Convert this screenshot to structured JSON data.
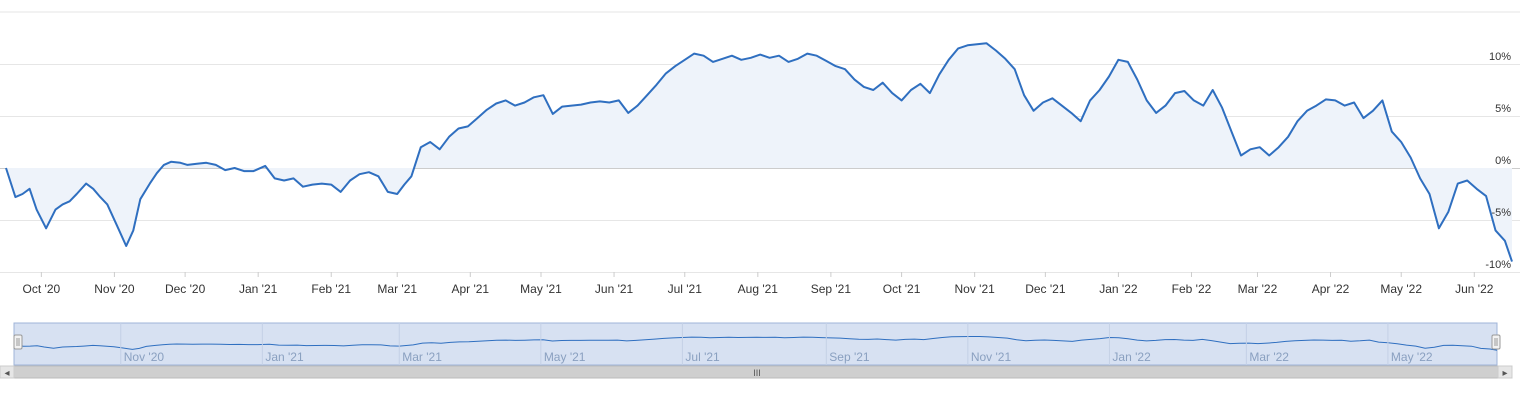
{
  "chart_data": {
    "type": "area",
    "title": "",
    "xlabel": "",
    "ylabel": "",
    "ylim": [
      -10,
      15
    ],
    "yticks": [
      {
        "value": 10,
        "label": "10%"
      },
      {
        "value": 5,
        "label": "5%"
      },
      {
        "value": 0,
        "label": "0%"
      },
      {
        "value": -5,
        "label": "-5%"
      },
      {
        "value": -10,
        "label": "-10%"
      }
    ],
    "xlim": [
      "2020-09-16",
      "2022-06-17"
    ],
    "xticks": [
      {
        "date": "2020-10-01",
        "label": "Oct '20"
      },
      {
        "date": "2020-11-01",
        "label": "Nov '20"
      },
      {
        "date": "2020-12-01",
        "label": "Dec '20"
      },
      {
        "date": "2021-01-01",
        "label": "Jan '21"
      },
      {
        "date": "2021-02-01",
        "label": "Feb '21"
      },
      {
        "date": "2021-03-01",
        "label": "Mar '21"
      },
      {
        "date": "2021-04-01",
        "label": "Apr '21"
      },
      {
        "date": "2021-05-01",
        "label": "May '21"
      },
      {
        "date": "2021-06-01",
        "label": "Jun '21"
      },
      {
        "date": "2021-07-01",
        "label": "Jul '21"
      },
      {
        "date": "2021-08-01",
        "label": "Aug '21"
      },
      {
        "date": "2021-09-01",
        "label": "Sep '21"
      },
      {
        "date": "2021-10-01",
        "label": "Oct '21"
      },
      {
        "date": "2021-11-01",
        "label": "Nov '21"
      },
      {
        "date": "2021-12-01",
        "label": "Dec '21"
      },
      {
        "date": "2022-01-01",
        "label": "Jan '22"
      },
      {
        "date": "2022-02-01",
        "label": "Feb '22"
      },
      {
        "date": "2022-03-01",
        "label": "Mar '22"
      },
      {
        "date": "2022-04-01",
        "label": "Apr '22"
      },
      {
        "date": "2022-05-01",
        "label": "May '22"
      },
      {
        "date": "2022-06-01",
        "label": "Jun '22"
      }
    ],
    "grid": true,
    "legend": "none",
    "series": [
      {
        "x": [
          "2020-09-16",
          "2020-09-20",
          "2020-09-23",
          "2020-09-26",
          "2020-09-29",
          "2020-10-03",
          "2020-10-07",
          "2020-10-10",
          "2020-10-13",
          "2020-10-16",
          "2020-10-20",
          "2020-10-23",
          "2020-10-26",
          "2020-10-29",
          "2020-11-02",
          "2020-11-06",
          "2020-11-09",
          "2020-11-12",
          "2020-11-16",
          "2020-11-19",
          "2020-11-22",
          "2020-11-25",
          "2020-11-29",
          "2020-12-02",
          "2020-12-06",
          "2020-12-10",
          "2020-12-14",
          "2020-12-18",
          "2020-12-22",
          "2020-12-26",
          "2020-12-30",
          "2021-01-04",
          "2021-01-08",
          "2021-01-12",
          "2021-01-16",
          "2021-01-20",
          "2021-01-24",
          "2021-01-28",
          "2021-02-01",
          "2021-02-05",
          "2021-02-09",
          "2021-02-13",
          "2021-02-17",
          "2021-02-21",
          "2021-02-25",
          "2021-03-01",
          "2021-03-04",
          "2021-03-07",
          "2021-03-11",
          "2021-03-15",
          "2021-03-19",
          "2021-03-23",
          "2021-03-27",
          "2021-03-31",
          "2021-04-04",
          "2021-04-08",
          "2021-04-12",
          "2021-04-16",
          "2021-04-20",
          "2021-04-24",
          "2021-04-28",
          "2021-05-02",
          "2021-05-06",
          "2021-05-10",
          "2021-05-14",
          "2021-05-18",
          "2021-05-22",
          "2021-05-26",
          "2021-05-30",
          "2021-06-03",
          "2021-06-07",
          "2021-06-11",
          "2021-06-15",
          "2021-06-19",
          "2021-06-23",
          "2021-06-27",
          "2021-07-01",
          "2021-07-05",
          "2021-07-09",
          "2021-07-13",
          "2021-07-17",
          "2021-07-21",
          "2021-07-25",
          "2021-07-29",
          "2021-08-02",
          "2021-08-06",
          "2021-08-10",
          "2021-08-14",
          "2021-08-18",
          "2021-08-22",
          "2021-08-26",
          "2021-08-30",
          "2021-09-03",
          "2021-09-07",
          "2021-09-11",
          "2021-09-15",
          "2021-09-19",
          "2021-09-23",
          "2021-09-27",
          "2021-10-01",
          "2021-10-05",
          "2021-10-09",
          "2021-10-13",
          "2021-10-17",
          "2021-10-21",
          "2021-10-25",
          "2021-10-29",
          "2021-11-02",
          "2021-11-06",
          "2021-11-10",
          "2021-11-14",
          "2021-11-18",
          "2021-11-22",
          "2021-11-26",
          "2021-11-30",
          "2021-12-04",
          "2021-12-08",
          "2021-12-12",
          "2021-12-16",
          "2021-12-20",
          "2021-12-24",
          "2021-12-28",
          "2022-01-01",
          "2022-01-05",
          "2022-01-09",
          "2022-01-13",
          "2022-01-17",
          "2022-01-21",
          "2022-01-25",
          "2022-01-29",
          "2022-02-02",
          "2022-02-06",
          "2022-02-10",
          "2022-02-14",
          "2022-02-18",
          "2022-02-22",
          "2022-02-26",
          "2022-03-02",
          "2022-03-06",
          "2022-03-10",
          "2022-03-14",
          "2022-03-18",
          "2022-03-22",
          "2022-03-26",
          "2022-03-30",
          "2022-04-03",
          "2022-04-07",
          "2022-04-11",
          "2022-04-15",
          "2022-04-19",
          "2022-04-23",
          "2022-04-27",
          "2022-05-01",
          "2022-05-05",
          "2022-05-09",
          "2022-05-13",
          "2022-05-17",
          "2022-05-21",
          "2022-05-25",
          "2022-05-29",
          "2022-06-02",
          "2022-06-06",
          "2022-06-10",
          "2022-06-14",
          "2022-06-17"
        ],
        "y": [
          0.0,
          -2.8,
          -2.5,
          -2.0,
          -4.0,
          -5.8,
          -4.0,
          -3.5,
          -3.2,
          -2.5,
          -1.5,
          -2.0,
          -2.8,
          -3.5,
          -5.5,
          -7.5,
          -6.0,
          -3.0,
          -1.5,
          -0.5,
          0.3,
          0.6,
          0.5,
          0.3,
          0.4,
          0.5,
          0.3,
          -0.2,
          0.0,
          -0.3,
          -0.3,
          0.2,
          -1.0,
          -1.2,
          -1.0,
          -1.8,
          -1.6,
          -1.5,
          -1.6,
          -2.3,
          -1.2,
          -0.6,
          -0.4,
          -0.8,
          -2.3,
          -2.5,
          -1.6,
          -0.8,
          2.0,
          2.5,
          1.8,
          3.0,
          3.8,
          4.0,
          4.8,
          5.6,
          6.2,
          6.5,
          6.0,
          6.3,
          6.8,
          7.0,
          5.2,
          5.9,
          6.0,
          6.1,
          6.3,
          6.4,
          6.3,
          6.5,
          5.3,
          6.0,
          7.0,
          8.0,
          9.1,
          9.8,
          10.4,
          11.0,
          10.8,
          10.2,
          10.5,
          10.8,
          10.4,
          10.6,
          10.9,
          10.6,
          10.8,
          10.2,
          10.5,
          11.0,
          10.8,
          10.3,
          9.8,
          9.5,
          8.5,
          7.8,
          7.5,
          8.2,
          7.2,
          6.5,
          7.5,
          8.1,
          7.2,
          9.0,
          10.4,
          11.5,
          11.8,
          11.9,
          12.0,
          11.3,
          10.5,
          9.5,
          7.0,
          5.5,
          6.3,
          6.7,
          6.0,
          5.3,
          4.5,
          6.5,
          7.5,
          8.8,
          10.4,
          10.2,
          8.5,
          6.5,
          5.3,
          6.0,
          7.2,
          7.4,
          6.5,
          6.0,
          7.5,
          5.8,
          3.5,
          1.2,
          1.8,
          2.0,
          1.2,
          2.0,
          3.0,
          4.5,
          5.5,
          6.0,
          6.6,
          6.5,
          6.0,
          6.3,
          4.8,
          5.5,
          6.5,
          3.5,
          2.5,
          1.0,
          -1.0,
          -2.5,
          -5.8,
          -4.2,
          -1.5,
          -1.2,
          -2.0,
          -2.7,
          -6.0,
          -7.0,
          -9.0
        ]
      }
    ],
    "navigator": {
      "labels": [
        {
          "date": "2020-11-01",
          "label": "Nov '20"
        },
        {
          "date": "2021-01-01",
          "label": "Jan '21"
        },
        {
          "date": "2021-03-01",
          "label": "Mar '21"
        },
        {
          "date": "2021-05-01",
          "label": "May '21"
        },
        {
          "date": "2021-07-01",
          "label": "Jul '21"
        },
        {
          "date": "2021-09-01",
          "label": "Sep '21"
        },
        {
          "date": "2021-11-01",
          "label": "Nov '21"
        },
        {
          "date": "2022-01-01",
          "label": "Jan '22"
        },
        {
          "date": "2022-03-01",
          "label": "Mar '22"
        },
        {
          "date": "2022-05-01",
          "label": "May '22"
        }
      ]
    }
  },
  "colors": {
    "line": "#2f6fc0",
    "area_fill": "#eef3fa",
    "grid": "#e6e6e6",
    "zero_line": "#cccccc",
    "navigator_mask": "#d7e1f2",
    "navigator_outline": "#9fb4d8",
    "scrollbar_track": "#f0f0f0",
    "scrollbar_thumb": "#cfcfcf"
  },
  "icons": {
    "scroll_left": "◂",
    "scroll_right": "▸",
    "scroll_grip": "III",
    "handle_grip": "||"
  }
}
